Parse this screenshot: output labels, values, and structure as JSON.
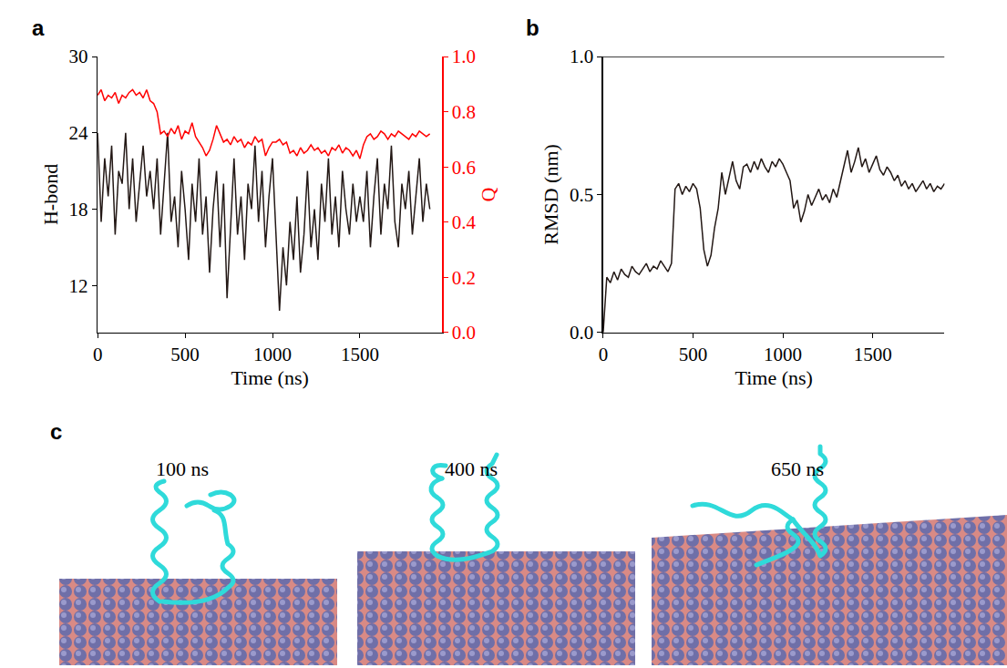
{
  "chart_data": [
    {
      "type": "line",
      "title": "a",
      "x": [
        0,
        20,
        40,
        60,
        80,
        100,
        120,
        140,
        160,
        180,
        200,
        220,
        240,
        260,
        280,
        300,
        320,
        340,
        360,
        380,
        400,
        420,
        440,
        460,
        480,
        500,
        520,
        540,
        560,
        580,
        600,
        620,
        640,
        660,
        680,
        700,
        720,
        740,
        760,
        780,
        800,
        820,
        840,
        860,
        880,
        900,
        920,
        940,
        960,
        980,
        1000,
        1020,
        1040,
        1060,
        1080,
        1100,
        1120,
        1140,
        1160,
        1180,
        1200,
        1220,
        1240,
        1260,
        1280,
        1300,
        1320,
        1340,
        1360,
        1380,
        1400,
        1420,
        1440,
        1460,
        1480,
        1500,
        1520,
        1540,
        1560,
        1580,
        1600,
        1620,
        1640,
        1660,
        1680,
        1700,
        1720,
        1740,
        1760,
        1780,
        1800,
        1820,
        1840,
        1860,
        1880,
        1900
      ],
      "xlim": [
        0,
        1970
      ],
      "xticks": [
        0,
        500,
        1000,
        1500
      ],
      "xlabel": "Time (ns)",
      "ylabel": "H-bond",
      "ylim": [
        8.3,
        30
      ],
      "yticks": [
        12,
        18,
        24,
        30
      ],
      "y2label": "Q",
      "y2lim": [
        0,
        1
      ],
      "y2ticks": [
        {
          "value": 0,
          "label": "0.0"
        },
        {
          "value": 0.2,
          "label": "0.2"
        },
        {
          "value": 0.4,
          "label": "0.4"
        },
        {
          "value": 0.6,
          "label": "0.6"
        },
        {
          "value": 0.8,
          "label": "0.8"
        },
        {
          "value": 1,
          "label": "1.0"
        }
      ],
      "series": [
        {
          "name": "H-bond",
          "color": "#231815",
          "values": [
            24,
            17,
            22,
            19,
            23,
            16,
            21,
            20,
            24,
            18,
            22,
            17,
            20,
            23,
            19,
            21,
            18,
            22,
            16,
            20,
            24,
            17,
            19,
            15,
            21,
            18,
            14,
            20,
            17,
            22,
            16,
            19,
            13,
            18,
            21,
            15,
            20,
            11,
            17,
            22,
            16,
            19,
            14,
            20,
            18,
            23,
            17,
            21,
            15,
            19,
            22,
            16,
            10,
            15,
            12,
            17,
            14,
            19,
            13,
            16,
            21,
            15,
            18,
            14,
            20,
            17,
            22,
            16,
            19,
            15,
            21,
            18,
            16,
            20,
            17,
            19,
            17,
            21,
            15,
            19,
            22,
            16,
            20,
            18,
            23,
            17,
            15,
            20,
            18,
            21,
            16,
            19,
            22,
            17,
            20,
            18
          ]
        },
        {
          "name": "Q",
          "color": "#ff0000",
          "axis": "y2",
          "values": [
            0.86,
            0.88,
            0.84,
            0.86,
            0.85,
            0.87,
            0.83,
            0.86,
            0.85,
            0.87,
            0.88,
            0.86,
            0.87,
            0.85,
            0.88,
            0.84,
            0.83,
            0.8,
            0.72,
            0.73,
            0.71,
            0.74,
            0.72,
            0.75,
            0.7,
            0.73,
            0.72,
            0.76,
            0.71,
            0.69,
            0.67,
            0.64,
            0.66,
            0.7,
            0.75,
            0.72,
            0.69,
            0.7,
            0.68,
            0.71,
            0.69,
            0.7,
            0.67,
            0.69,
            0.68,
            0.71,
            0.69,
            0.7,
            0.64,
            0.67,
            0.69,
            0.69,
            0.7,
            0.68,
            0.69,
            0.65,
            0.66,
            0.64,
            0.67,
            0.65,
            0.66,
            0.68,
            0.66,
            0.67,
            0.65,
            0.66,
            0.64,
            0.67,
            0.66,
            0.68,
            0.65,
            0.67,
            0.66,
            0.64,
            0.66,
            0.63,
            0.68,
            0.71,
            0.72,
            0.7,
            0.71,
            0.73,
            0.72,
            0.7,
            0.72,
            0.71,
            0.73,
            0.72,
            0.71,
            0.7,
            0.72,
            0.71,
            0.73,
            0.72,
            0.71,
            0.72
          ]
        }
      ]
    },
    {
      "type": "line",
      "title": "b",
      "x": [
        0,
        20,
        40,
        60,
        80,
        100,
        120,
        140,
        160,
        180,
        200,
        220,
        240,
        260,
        280,
        300,
        320,
        340,
        360,
        380,
        400,
        420,
        440,
        460,
        480,
        500,
        520,
        540,
        560,
        580,
        600,
        620,
        640,
        660,
        680,
        700,
        720,
        740,
        760,
        780,
        800,
        820,
        840,
        860,
        880,
        900,
        920,
        940,
        960,
        980,
        1000,
        1020,
        1040,
        1060,
        1080,
        1100,
        1120,
        1140,
        1160,
        1180,
        1200,
        1220,
        1240,
        1260,
        1280,
        1300,
        1320,
        1340,
        1360,
        1380,
        1400,
        1420,
        1440,
        1460,
        1480,
        1500,
        1520,
        1540,
        1560,
        1580,
        1600,
        1620,
        1640,
        1660,
        1680,
        1700,
        1720,
        1740,
        1760,
        1780,
        1800,
        1820,
        1840,
        1860,
        1880,
        1900
      ],
      "xlim": [
        0,
        1900
      ],
      "xticks": [
        0,
        500,
        1000,
        1500
      ],
      "xlabel": "Time (ns)",
      "ylabel": "RMSD (nm)",
      "ylim": [
        0,
        1
      ],
      "yticks": [
        {
          "value": 0,
          "label": "0.0"
        },
        0.5,
        {
          "value": 1,
          "label": "1.0"
        }
      ],
      "series": [
        {
          "name": "RMSD",
          "color": "#231815",
          "values": [
            0.0,
            0.2,
            0.18,
            0.22,
            0.19,
            0.23,
            0.21,
            0.2,
            0.24,
            0.22,
            0.21,
            0.23,
            0.25,
            0.22,
            0.24,
            0.23,
            0.26,
            0.24,
            0.22,
            0.25,
            0.52,
            0.54,
            0.5,
            0.53,
            0.51,
            0.54,
            0.52,
            0.45,
            0.3,
            0.24,
            0.28,
            0.38,
            0.45,
            0.58,
            0.5,
            0.56,
            0.62,
            0.55,
            0.52,
            0.6,
            0.61,
            0.58,
            0.62,
            0.59,
            0.63,
            0.6,
            0.58,
            0.62,
            0.6,
            0.63,
            0.61,
            0.58,
            0.55,
            0.45,
            0.48,
            0.4,
            0.44,
            0.5,
            0.46,
            0.49,
            0.52,
            0.48,
            0.5,
            0.47,
            0.52,
            0.49,
            0.55,
            0.6,
            0.66,
            0.58,
            0.62,
            0.67,
            0.6,
            0.63,
            0.58,
            0.61,
            0.64,
            0.59,
            0.57,
            0.6,
            0.58,
            0.55,
            0.57,
            0.53,
            0.55,
            0.52,
            0.54,
            0.51,
            0.53,
            0.55,
            0.52,
            0.54,
            0.51,
            0.53,
            0.52,
            0.54
          ]
        }
      ]
    }
  ],
  "panel_c": {
    "label": "c",
    "snapshots": [
      "100 ns",
      "400 ns",
      "650 ns"
    ]
  }
}
